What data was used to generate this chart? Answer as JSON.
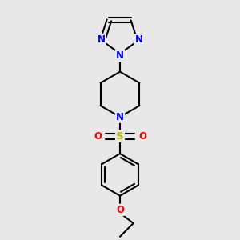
{
  "bg_color": "#e8e8e8",
  "bond_color": "#000000",
  "N_color": "#0000ff",
  "O_color": "#ff0000",
  "S_color": "#b8b800",
  "line_width": 1.5,
  "dbo": 0.012,
  "figsize": [
    3.0,
    3.0
  ],
  "dpi": 100,
  "xlim": [
    0.2,
    0.8
  ],
  "ylim": [
    0.05,
    0.98
  ]
}
